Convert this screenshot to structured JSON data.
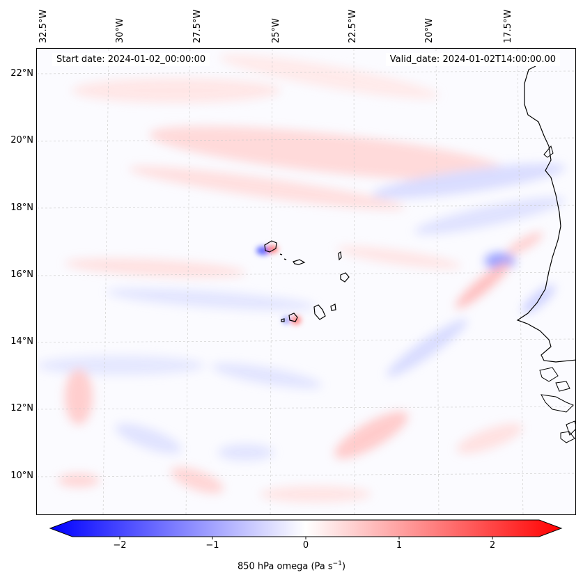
{
  "map": {
    "start_date": "Start date: 2024-01-02_00:00:00",
    "valid_date": "Valid_date: 2024-01-02T14:00:00.00",
    "lon_labels": [
      "32.5°W",
      "30°W",
      "27.5°W",
      "25°W",
      "22.5°W",
      "20°W",
      "17.5°W"
    ],
    "lat_labels": [
      "22°N",
      "20°N",
      "18°N",
      "16°N",
      "14°N",
      "12°N",
      "10°N"
    ],
    "field": "850 hPa omega",
    "unit_text": "(Pa s",
    "unit_sup": "−1",
    "unit_close": ")"
  },
  "colorbar": {
    "ticks": [
      "−2",
      "−1",
      "0",
      "1",
      "2"
    ],
    "min_color": "#0000ff",
    "mid_color": "#ffffff",
    "max_color": "#ff0000"
  }
}
